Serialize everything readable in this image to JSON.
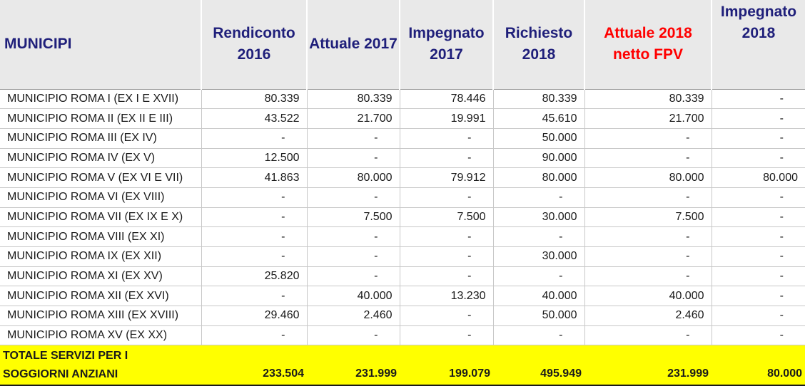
{
  "header": {
    "municipi": "MUNICIPI",
    "rendiconto_2016": "Rendiconto 2016",
    "attuale_2017": "Attuale 2017",
    "impegnato_2017": "Impegnato 2017",
    "richiesto_2018": "Richiesto 2018",
    "attuale_2018_netto_fpv": "Attuale 2018 netto FPV",
    "impegnato_2018": "Impegnato 2018"
  },
  "colors": {
    "header_text": "#1f1f7a",
    "header_highlight": "#ff0000",
    "total_background": "#ffff00"
  },
  "rows": [
    {
      "name": "MUNICIPIO ROMA I (EX I E XVII)",
      "r2016": "80.339",
      "a2017": "80.339",
      "i2017": "78.446",
      "r2018": "80.339",
      "a2018": "80.339",
      "i2018": "-"
    },
    {
      "name": "MUNICIPIO ROMA II (EX II E III)",
      "r2016": "43.522",
      "a2017": "21.700",
      "i2017": "19.991",
      "r2018": "45.610",
      "a2018": "21.700",
      "i2018": "-"
    },
    {
      "name": "MUNICIPIO ROMA III (EX IV)",
      "r2016": "-",
      "a2017": "-",
      "i2017": "-",
      "r2018": "50.000",
      "a2018": "-",
      "i2018": "-"
    },
    {
      "name": "MUNICIPIO ROMA IV (EX V)",
      "r2016": "12.500",
      "a2017": "-",
      "i2017": "-",
      "r2018": "90.000",
      "a2018": "-",
      "i2018": "-"
    },
    {
      "name": "MUNICIPIO ROMA V (EX VI E VII)",
      "r2016": "41.863",
      "a2017": "80.000",
      "i2017": "79.912",
      "r2018": "80.000",
      "a2018": "80.000",
      "i2018": "80.000"
    },
    {
      "name": "MUNICIPIO ROMA VI (EX VIII)",
      "r2016": "-",
      "a2017": "-",
      "i2017": "-",
      "r2018": "-",
      "a2018": "-",
      "i2018": "-"
    },
    {
      "name": "MUNICIPIO ROMA VII (EX IX E X)",
      "r2016": "-",
      "a2017": "7.500",
      "i2017": "7.500",
      "r2018": "30.000",
      "a2018": "7.500",
      "i2018": "-"
    },
    {
      "name": "MUNICIPIO ROMA VIII (EX XI)",
      "r2016": "-",
      "a2017": "-",
      "i2017": "-",
      "r2018": "-",
      "a2018": "-",
      "i2018": "-"
    },
    {
      "name": "MUNICIPIO ROMA IX (EX XII)",
      "r2016": "-",
      "a2017": "-",
      "i2017": "-",
      "r2018": "30.000",
      "a2018": "-",
      "i2018": "-"
    },
    {
      "name": "MUNICIPIO ROMA XI (EX XV)",
      "r2016": "25.820",
      "a2017": "-",
      "i2017": "-",
      "r2018": "-",
      "a2018": "-",
      "i2018": "-"
    },
    {
      "name": "MUNICIPIO ROMA XII (EX XVI)",
      "r2016": "-",
      "a2017": "40.000",
      "i2017": "13.230",
      "r2018": "40.000",
      "a2018": "40.000",
      "i2018": "-"
    },
    {
      "name": "MUNICIPIO ROMA XIII (EX XVIII)",
      "r2016": "29.460",
      "a2017": "2.460",
      "i2017": "-",
      "r2018": "50.000",
      "a2018": "2.460",
      "i2018": "-"
    },
    {
      "name": "MUNICIPIO ROMA XV (EX XX)",
      "r2016": "-",
      "a2017": "-",
      "i2017": "-",
      "r2018": "-",
      "a2018": "-",
      "i2018": "-"
    }
  ],
  "total": {
    "label_line1": "TOTALE SERVIZI PER I",
    "label_line2": "SOGGIORNI ANZIANI",
    "r2016": "233.504",
    "a2017": "231.999",
    "i2017": "199.079",
    "r2018": "495.949",
    "a2018": "231.999",
    "i2018": "80.000"
  }
}
